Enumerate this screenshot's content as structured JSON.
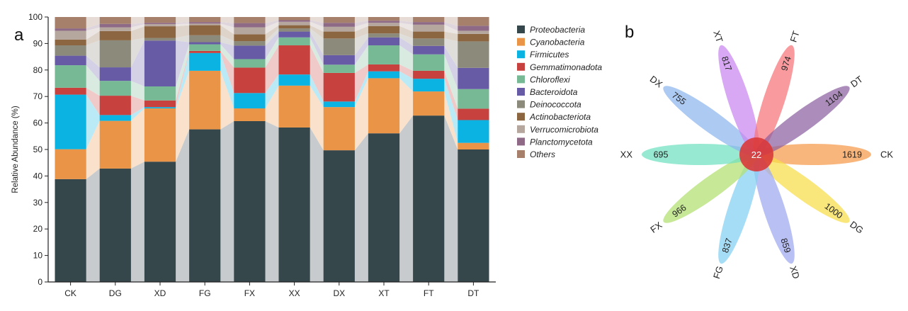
{
  "panel_a_label": "a",
  "panel_b_label": "b",
  "chart_data": [
    {
      "type": "bar",
      "stacked": true,
      "title": "",
      "xlabel": "",
      "ylabel": "Relative Abundance (%)",
      "ylim": [
        0,
        100
      ],
      "yticks": [
        0,
        10,
        20,
        30,
        40,
        50,
        60,
        70,
        80,
        90,
        100
      ],
      "categories": [
        "CK",
        "DG",
        "XD",
        "FG",
        "FX",
        "XX",
        "DX",
        "XT",
        "FT",
        "DT"
      ],
      "legend_position": "right",
      "series": [
        {
          "name": "Proteobacteria",
          "color": "#36474c",
          "values": [
            38.8,
            42.8,
            45.4,
            57.6,
            60.7,
            58.3,
            49.7,
            56.1,
            62.8,
            50.0
          ]
        },
        {
          "name": "Cyanobacteria",
          "color": "#e99446",
          "values": [
            11.3,
            18.0,
            20.1,
            22.1,
            4.8,
            15.8,
            16.3,
            20.8,
            9.1,
            2.5
          ]
        },
        {
          "name": "Firmicutes",
          "color": "#0bb3e3",
          "values": [
            20.6,
            2.2,
            0.5,
            6.7,
            5.8,
            4.2,
            2.1,
            2.6,
            4.8,
            8.6
          ]
        },
        {
          "name": "Gemmatimonadota",
          "color": "#c7413f",
          "values": [
            2.6,
            7.3,
            2.5,
            0.8,
            9.6,
            11.0,
            10.8,
            2.6,
            3.0,
            4.3
          ]
        },
        {
          "name": "Chloroflexi",
          "color": "#78b995",
          "values": [
            8.5,
            5.6,
            5.3,
            2.5,
            3.2,
            3.0,
            3.1,
            7.2,
            6.2,
            7.4
          ]
        },
        {
          "name": "Bacteroidota",
          "color": "#675ba5",
          "values": [
            3.6,
            5.1,
            17.3,
            0.8,
            5.1,
            2.2,
            3.6,
            3.0,
            3.2,
            8.0
          ]
        },
        {
          "name": "Deinococcota",
          "color": "#8c8a7b",
          "values": [
            3.9,
            10.2,
            1.0,
            2.6,
            1.7,
            1.2,
            6.3,
            1.5,
            2.8,
            10.0
          ]
        },
        {
          "name": "Actinobacteriota",
          "color": "#8b6641",
          "values": [
            2.2,
            3.5,
            4.4,
            3.8,
            2.6,
            1.2,
            2.6,
            2.8,
            2.6,
            2.8
          ]
        },
        {
          "name": "Verrucomicrobiota",
          "color": "#b6a79e",
          "values": [
            3.3,
            1.4,
            0.8,
            0.6,
            2.6,
            1.3,
            1.8,
            1.2,
            2.6,
            1.2
          ]
        },
        {
          "name": "Planctomycetota",
          "color": "#8e6a86",
          "values": [
            0.9,
            1.3,
            0.5,
            0.6,
            1.6,
            0.6,
            1.5,
            0.8,
            1.0,
            1.9
          ]
        },
        {
          "name": "Others",
          "color": "#a6806a",
          "values": [
            4.3,
            2.6,
            2.2,
            1.9,
            2.3,
            1.2,
            2.2,
            1.4,
            1.9,
            3.3
          ]
        }
      ]
    },
    {
      "type": "flower",
      "title": "",
      "core_value": "22",
      "core_color": "#d9383a",
      "petals": [
        {
          "name": "CK",
          "value": "1619",
          "angle": 0,
          "color": "#f79a4a"
        },
        {
          "name": "DG",
          "value": "1000",
          "angle": 36,
          "color": "#f6de4a"
        },
        {
          "name": "XD",
          "value": "859",
          "angle": 72,
          "color": "#9ea8ee"
        },
        {
          "name": "FG",
          "value": "837",
          "angle": 108,
          "color": "#84d0f2"
        },
        {
          "name": "FX",
          "value": "966",
          "angle": 144,
          "color": "#b2e06f"
        },
        {
          "name": "XX",
          "value": "695",
          "angle": 180,
          "color": "#6fe0bf"
        },
        {
          "name": "DX",
          "value": "755",
          "angle": 216,
          "color": "#8eb6ee"
        },
        {
          "name": "XT",
          "value": "817",
          "angle": 252,
          "color": "#c987f0"
        },
        {
          "name": "FT",
          "value": "974",
          "angle": 288,
          "color": "#f77479"
        },
        {
          "name": "DT",
          "value": "1104",
          "angle": 324,
          "color": "#8c5fa0"
        }
      ]
    }
  ]
}
